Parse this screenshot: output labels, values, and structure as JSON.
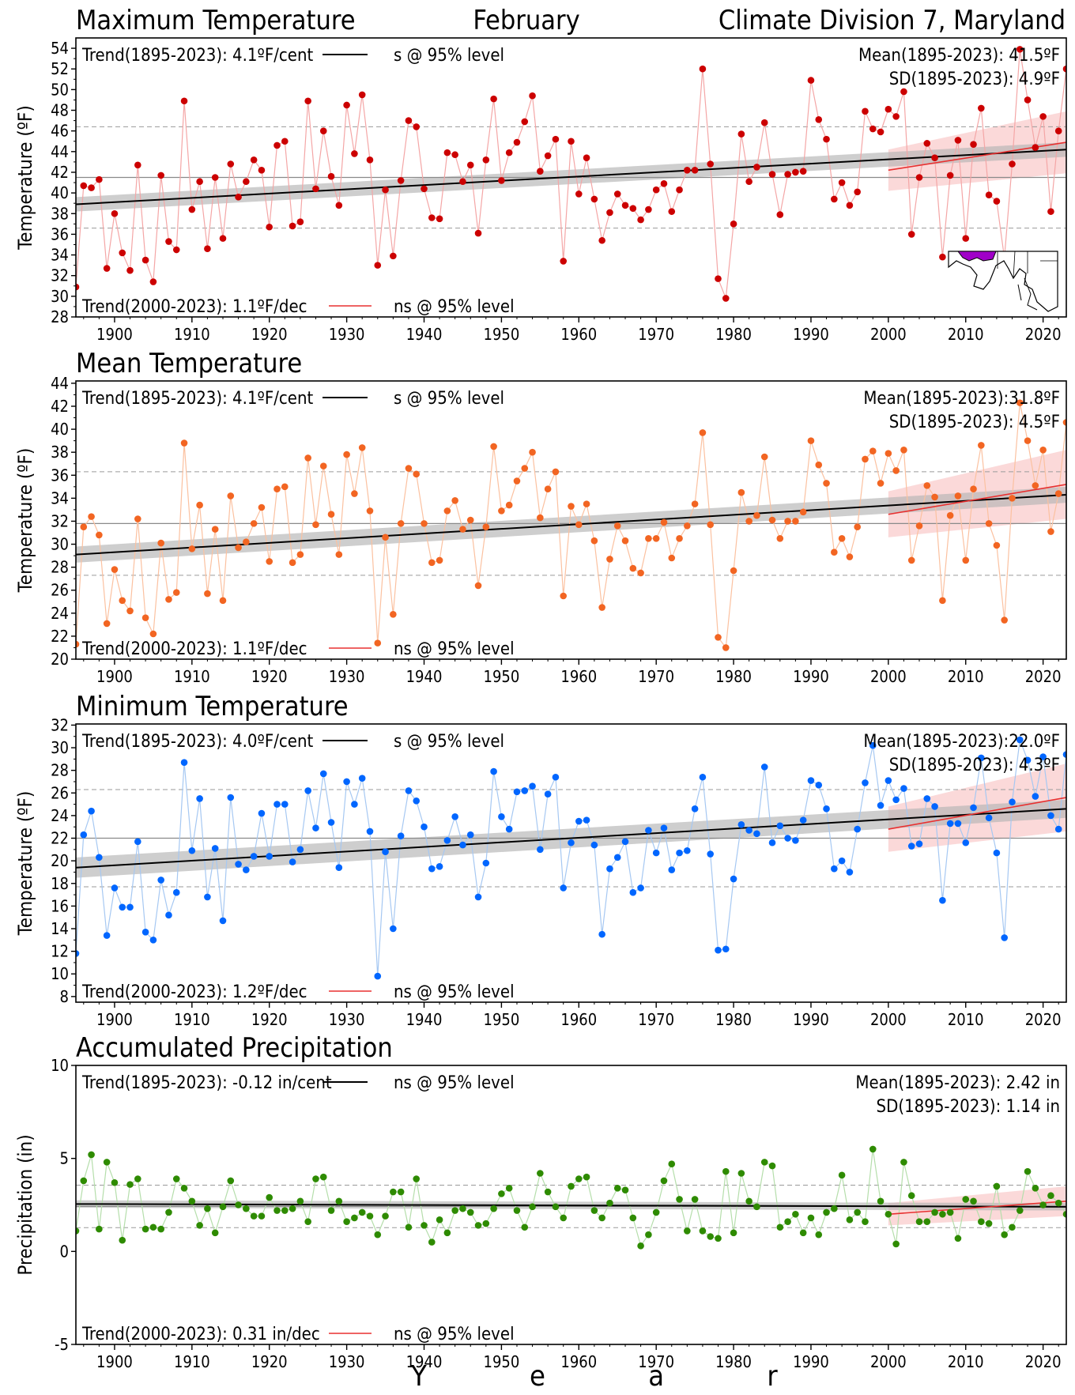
{
  "header": {
    "left_title": "Maximum Temperature",
    "center_title": "February",
    "right_title": "Climate Division 7, Maryland"
  },
  "xlabel": "Y e a r",
  "chart_data": [
    {
      "type": "line",
      "title": "Maximum Temperature",
      "ylabel": "Temperature (ºF)",
      "color": "#cc0000",
      "line_color": "#f4a6a6",
      "xlim": [
        1895,
        2023
      ],
      "ylim": [
        28,
        55
      ],
      "yticks": [
        28,
        30,
        32,
        34,
        36,
        38,
        40,
        42,
        44,
        46,
        48,
        50,
        52,
        54
      ],
      "xticks": [
        1900,
        1910,
        1920,
        1930,
        1940,
        1950,
        1960,
        1970,
        1980,
        1990,
        2000,
        2010,
        2020
      ],
      "mean": 41.5,
      "sd": 4.9,
      "mean_text": "Mean(1895-2023): 41.5ºF",
      "sd_text": "SD(1895-2023): 4.9ºF",
      "trend_long_text": "Trend(1895-2023):  4.1ºF/cent",
      "trend_long_sig": "s @ 95% level",
      "trend_short_text": "Trend(2000-2023):  1.1ºF/dec",
      "trend_short_sig": "ns @ 95% level",
      "trend_long": {
        "start": 38.9,
        "end": 44.2,
        "band_start": 0.7,
        "band_end": 0.7
      },
      "trend_short": {
        "start": 42.2,
        "end": 44.9,
        "band_start": 2.0,
        "band_end": 3.0
      },
      "x": [
        1895,
        1896,
        1897,
        1898,
        1899,
        1900,
        1901,
        1902,
        1903,
        1904,
        1905,
        1906,
        1907,
        1908,
        1909,
        1910,
        1911,
        1912,
        1913,
        1914,
        1915,
        1916,
        1917,
        1918,
        1919,
        1920,
        1921,
        1922,
        1923,
        1924,
        1925,
        1926,
        1927,
        1928,
        1929,
        1930,
        1931,
        1932,
        1933,
        1934,
        1935,
        1936,
        1937,
        1938,
        1939,
        1940,
        1941,
        1942,
        1943,
        1944,
        1945,
        1946,
        1947,
        1948,
        1949,
        1950,
        1951,
        1952,
        1953,
        1954,
        1955,
        1956,
        1957,
        1958,
        1959,
        1960,
        1961,
        1962,
        1963,
        1964,
        1965,
        1966,
        1967,
        1968,
        1969,
        1970,
        1971,
        1972,
        1973,
        1974,
        1975,
        1976,
        1977,
        1978,
        1979,
        1980,
        1981,
        1982,
        1983,
        1984,
        1985,
        1986,
        1987,
        1988,
        1989,
        1990,
        1991,
        1992,
        1993,
        1994,
        1995,
        1996,
        1997,
        1998,
        1999,
        2000,
        2001,
        2002,
        2003,
        2004,
        2005,
        2006,
        2007,
        2008,
        2009,
        2010,
        2011,
        2012,
        2013,
        2014,
        2015,
        2016,
        2017,
        2018,
        2019,
        2020,
        2021,
        2022,
        2023
      ],
      "values": [
        30.9,
        40.7,
        40.5,
        41.3,
        32.7,
        38.0,
        34.2,
        32.5,
        42.7,
        33.5,
        31.4,
        41.7,
        35.3,
        34.5,
        48.9,
        38.4,
        41.1,
        34.6,
        41.5,
        35.6,
        42.8,
        39.6,
        41.1,
        43.2,
        42.2,
        36.7,
        44.6,
        45.0,
        36.8,
        37.2,
        48.9,
        40.4,
        46.0,
        41.6,
        38.8,
        48.5,
        43.8,
        49.5,
        43.2,
        33.0,
        40.3,
        33.9,
        41.2,
        47.0,
        46.4,
        40.4,
        37.6,
        37.5,
        43.9,
        43.7,
        41.1,
        42.7,
        36.1,
        43.2,
        49.1,
        41.2,
        43.9,
        44.9,
        46.9,
        49.4,
        42.1,
        43.6,
        45.2,
        33.4,
        45.0,
        39.9,
        43.4,
        39.4,
        35.4,
        38.1,
        39.9,
        38.8,
        38.5,
        37.4,
        38.4,
        40.3,
        40.9,
        38.2,
        40.3,
        42.2,
        42.2,
        52.0,
        42.8,
        31.7,
        29.8,
        37.0,
        45.7,
        41.1,
        42.5,
        46.8,
        41.8,
        37.9,
        41.8,
        42.0,
        42.1,
        50.9,
        47.1,
        45.2,
        39.4,
        41.0,
        38.8,
        40.1,
        47.9,
        46.2,
        45.9,
        48.1,
        47.4,
        49.8,
        36.0,
        41.5,
        44.8,
        43.4,
        33.8,
        41.7,
        45.1,
        35.6,
        44.7,
        48.2,
        39.8,
        39.2,
        33.7,
        42.8,
        53.9,
        49.0,
        44.4,
        47.4,
        38.2,
        46.0,
        52.0
      ]
    },
    {
      "type": "line",
      "title": "Mean Temperature",
      "ylabel": "Temperature (ºF)",
      "color": "#f26522",
      "line_color": "#fbc1a0",
      "xlim": [
        1895,
        2023
      ],
      "ylim": [
        20,
        44.2
      ],
      "yticks": [
        20,
        22,
        24,
        26,
        28,
        30,
        32,
        34,
        36,
        38,
        40,
        42,
        44
      ],
      "xticks": [
        1900,
        1910,
        1920,
        1930,
        1940,
        1950,
        1960,
        1970,
        1980,
        1990,
        2000,
        2010,
        2020
      ],
      "mean": 31.8,
      "sd": 4.5,
      "mean_text": "Mean(1895-2023):31.8ºF",
      "sd_text": "SD(1895-2023): 4.5ºF",
      "trend_long_text": "Trend(1895-2023):  4.1ºF/cent",
      "trend_long_sig": "s @ 95% level",
      "trend_short_text": "Trend(2000-2023):  1.1ºF/dec",
      "trend_short_sig": "ns @ 95% level",
      "trend_long": {
        "start": 29.1,
        "end": 34.3,
        "band_start": 0.7,
        "band_end": 0.7
      },
      "trend_short": {
        "start": 32.6,
        "end": 35.2,
        "band_start": 2.0,
        "band_end": 3.0
      },
      "x": [
        1895,
        1896,
        1897,
        1898,
        1899,
        1900,
        1901,
        1902,
        1903,
        1904,
        1905,
        1906,
        1907,
        1908,
        1909,
        1910,
        1911,
        1912,
        1913,
        1914,
        1915,
        1916,
        1917,
        1918,
        1919,
        1920,
        1921,
        1922,
        1923,
        1924,
        1925,
        1926,
        1927,
        1928,
        1929,
        1930,
        1931,
        1932,
        1933,
        1934,
        1935,
        1936,
        1937,
        1938,
        1939,
        1940,
        1941,
        1942,
        1943,
        1944,
        1945,
        1946,
        1947,
        1948,
        1949,
        1950,
        1951,
        1952,
        1953,
        1954,
        1955,
        1956,
        1957,
        1958,
        1959,
        1960,
        1961,
        1962,
        1963,
        1964,
        1965,
        1966,
        1967,
        1968,
        1969,
        1970,
        1971,
        1972,
        1973,
        1974,
        1975,
        1976,
        1977,
        1978,
        1979,
        1980,
        1981,
        1982,
        1983,
        1984,
        1985,
        1986,
        1987,
        1988,
        1989,
        1990,
        1991,
        1992,
        1993,
        1994,
        1995,
        1996,
        1997,
        1998,
        1999,
        2000,
        2001,
        2002,
        2003,
        2004,
        2005,
        2006,
        2007,
        2008,
        2009,
        2010,
        2011,
        2012,
        2013,
        2014,
        2015,
        2016,
        2017,
        2018,
        2019,
        2020,
        2021,
        2022,
        2023
      ],
      "values": [
        21.3,
        31.5,
        32.4,
        30.8,
        23.1,
        27.8,
        25.1,
        24.2,
        32.2,
        23.6,
        22.2,
        30.1,
        25.2,
        25.8,
        38.8,
        29.6,
        33.4,
        25.7,
        31.3,
        25.1,
        34.2,
        29.7,
        30.2,
        31.8,
        33.2,
        28.5,
        34.8,
        35.0,
        28.4,
        29.1,
        37.5,
        31.7,
        36.8,
        32.6,
        29.1,
        37.8,
        34.4,
        38.4,
        32.9,
        21.4,
        30.6,
        23.9,
        31.8,
        36.6,
        36.1,
        31.8,
        28.4,
        28.6,
        32.9,
        33.8,
        31.3,
        32.1,
        26.4,
        31.5,
        38.5,
        32.9,
        33.4,
        35.5,
        36.6,
        38.0,
        32.3,
        34.8,
        36.3,
        25.5,
        33.3,
        31.7,
        33.5,
        30.3,
        24.5,
        28.7,
        31.6,
        30.3,
        27.9,
        27.5,
        30.5,
        30.5,
        31.9,
        28.8,
        30.5,
        31.6,
        33.5,
        39.7,
        31.7,
        21.9,
        21.0,
        27.7,
        34.5,
        32.0,
        32.5,
        37.6,
        32.1,
        30.5,
        32.0,
        32.0,
        32.8,
        39.0,
        36.9,
        35.3,
        29.3,
        30.5,
        28.9,
        31.5,
        37.4,
        38.1,
        35.3,
        37.9,
        36.4,
        38.2,
        28.6,
        31.6,
        35.1,
        34.1,
        25.1,
        32.5,
        34.2,
        28.6,
        34.8,
        38.6,
        31.8,
        29.9,
        23.4,
        34.0,
        42.3,
        39.0,
        35.1,
        38.2,
        31.1,
        34.4,
        40.6
      ]
    },
    {
      "type": "line",
      "title": "Minimum Temperature",
      "ylabel": "Temperature (ºF)",
      "color": "#0066ff",
      "line_color": "#a6c8f2",
      "xlim": [
        1895,
        2023
      ],
      "ylim": [
        7.5,
        32.1
      ],
      "yticks": [
        8,
        10,
        12,
        14,
        16,
        18,
        20,
        22,
        24,
        26,
        28,
        30,
        32
      ],
      "xticks": [
        1900,
        1910,
        1920,
        1930,
        1940,
        1950,
        1960,
        1970,
        1980,
        1990,
        2000,
        2010,
        2020
      ],
      "mean": 22.0,
      "sd": 4.3,
      "mean_text": "Mean(1895-2023):22.0ºF",
      "sd_text": "SD(1895-2023): 4.3ºF",
      "trend_long_text": "Trend(1895-2023):  4.0ºF/cent",
      "trend_long_sig": "s @ 95% level",
      "trend_short_text": "Trend(2000-2023):  1.2ºF/dec",
      "trend_short_sig": "ns @ 95% level",
      "trend_long": {
        "start": 19.4,
        "end": 24.6,
        "band_start": 0.9,
        "band_end": 0.8
      },
      "trend_short": {
        "start": 22.8,
        "end": 25.6,
        "band_start": 2.0,
        "band_end": 3.0
      },
      "x": [
        1895,
        1896,
        1897,
        1898,
        1899,
        1900,
        1901,
        1902,
        1903,
        1904,
        1905,
        1906,
        1907,
        1908,
        1909,
        1910,
        1911,
        1912,
        1913,
        1914,
        1915,
        1916,
        1917,
        1918,
        1919,
        1920,
        1921,
        1922,
        1923,
        1924,
        1925,
        1926,
        1927,
        1928,
        1929,
        1930,
        1931,
        1932,
        1933,
        1934,
        1935,
        1936,
        1937,
        1938,
        1939,
        1940,
        1941,
        1942,
        1943,
        1944,
        1945,
        1946,
        1947,
        1948,
        1949,
        1950,
        1951,
        1952,
        1953,
        1954,
        1955,
        1956,
        1957,
        1958,
        1959,
        1960,
        1961,
        1962,
        1963,
        1964,
        1965,
        1966,
        1967,
        1968,
        1969,
        1970,
        1971,
        1972,
        1973,
        1974,
        1975,
        1976,
        1977,
        1978,
        1979,
        1980,
        1981,
        1982,
        1983,
        1984,
        1985,
        1986,
        1987,
        1988,
        1989,
        1990,
        1991,
        1992,
        1993,
        1994,
        1995,
        1996,
        1997,
        1998,
        1999,
        2000,
        2001,
        2002,
        2003,
        2004,
        2005,
        2006,
        2007,
        2008,
        2009,
        2010,
        2011,
        2012,
        2013,
        2014,
        2015,
        2016,
        2017,
        2018,
        2019,
        2020,
        2021,
        2022,
        2023
      ],
      "values": [
        11.8,
        22.3,
        24.4,
        20.3,
        13.4,
        17.6,
        15.9,
        15.9,
        21.7,
        13.7,
        13.0,
        18.3,
        15.2,
        17.2,
        28.7,
        20.9,
        25.5,
        16.8,
        21.1,
        14.7,
        25.6,
        19.7,
        19.2,
        20.4,
        24.2,
        20.4,
        25.0,
        25.0,
        19.9,
        21.0,
        26.2,
        22.9,
        27.7,
        23.4,
        19.4,
        27.0,
        25.0,
        27.3,
        22.6,
        9.8,
        20.8,
        14.0,
        22.2,
        26.2,
        25.3,
        23.0,
        19.3,
        19.5,
        21.8,
        23.9,
        21.4,
        22.3,
        16.8,
        19.8,
        27.9,
        23.9,
        22.8,
        26.1,
        26.2,
        26.6,
        21.0,
        25.9,
        27.4,
        17.6,
        21.6,
        23.5,
        23.6,
        21.4,
        13.5,
        19.3,
        20.3,
        21.7,
        17.2,
        17.6,
        22.7,
        20.7,
        22.9,
        19.2,
        20.7,
        20.9,
        24.6,
        27.4,
        20.6,
        12.1,
        12.2,
        18.4,
        23.2,
        22.7,
        22.4,
        28.3,
        21.6,
        23.1,
        22.0,
        21.8,
        23.6,
        27.1,
        26.7,
        24.6,
        19.3,
        20.0,
        19.0,
        22.8,
        26.9,
        30.2,
        24.9,
        27.1,
        25.4,
        26.4,
        21.3,
        21.5,
        25.5,
        24.8,
        16.5,
        23.3,
        23.3,
        21.6,
        24.7,
        29.1,
        23.8,
        20.7,
        13.2,
        25.2,
        30.7,
        28.9,
        25.7,
        29.2,
        24.0,
        22.8,
        29.4
      ]
    },
    {
      "type": "line",
      "title": "Accumulated Precipitation",
      "ylabel": "Precipitation (in)",
      "color": "#2e8b00",
      "line_color": "#b5deab",
      "xlim": [
        1895,
        2023
      ],
      "ylim": [
        -5,
        10
      ],
      "yticks": [
        -5,
        0,
        5,
        10
      ],
      "xticks": [
        1900,
        1910,
        1920,
        1930,
        1940,
        1950,
        1960,
        1970,
        1980,
        1990,
        2000,
        2010,
        2020
      ],
      "mean": 2.42,
      "sd": 1.14,
      "mean_text": "Mean(1895-2023): 2.42 in",
      "sd_text": "SD(1895-2023): 1.14 in",
      "trend_long_text": "Trend(1895-2023): -0.12 in/cent",
      "trend_long_sig": "ns @ 95% level",
      "trend_short_text": "Trend(2000-2023):  0.31 in/dec",
      "trend_short_sig": "ns @ 95% level",
      "trend_long": {
        "start": 2.55,
        "end": 2.4,
        "band_start": 0.2,
        "band_end": 0.2
      },
      "trend_short": {
        "start": 2.0,
        "end": 2.7,
        "band_start": 0.6,
        "band_end": 0.8
      },
      "x": [
        1895,
        1896,
        1897,
        1898,
        1899,
        1900,
        1901,
        1902,
        1903,
        1904,
        1905,
        1906,
        1907,
        1908,
        1909,
        1910,
        1911,
        1912,
        1913,
        1914,
        1915,
        1916,
        1917,
        1918,
        1919,
        1920,
        1921,
        1922,
        1923,
        1924,
        1925,
        1926,
        1927,
        1928,
        1929,
        1930,
        1931,
        1932,
        1933,
        1934,
        1935,
        1936,
        1937,
        1938,
        1939,
        1940,
        1941,
        1942,
        1943,
        1944,
        1945,
        1946,
        1947,
        1948,
        1949,
        1950,
        1951,
        1952,
        1953,
        1954,
        1955,
        1956,
        1957,
        1958,
        1959,
        1960,
        1961,
        1962,
        1963,
        1964,
        1965,
        1966,
        1967,
        1968,
        1969,
        1970,
        1971,
        1972,
        1973,
        1974,
        1975,
        1976,
        1977,
        1978,
        1979,
        1980,
        1981,
        1982,
        1983,
        1984,
        1985,
        1986,
        1987,
        1988,
        1989,
        1990,
        1991,
        1992,
        1993,
        1994,
        1995,
        1996,
        1997,
        1998,
        1999,
        2000,
        2001,
        2002,
        2003,
        2004,
        2005,
        2006,
        2007,
        2008,
        2009,
        2010,
        2011,
        2012,
        2013,
        2014,
        2015,
        2016,
        2017,
        2018,
        2019,
        2020,
        2021,
        2022,
        2023
      ],
      "values": [
        1.1,
        3.8,
        5.2,
        1.2,
        4.8,
        3.7,
        0.6,
        3.6,
        3.9,
        1.2,
        1.3,
        1.2,
        2.1,
        3.9,
        3.4,
        2.7,
        1.4,
        2.3,
        1.0,
        2.4,
        3.8,
        2.5,
        2.3,
        1.9,
        1.9,
        2.9,
        2.2,
        2.2,
        2.3,
        2.7,
        1.6,
        3.9,
        4.0,
        2.2,
        2.7,
        1.6,
        1.8,
        2.1,
        1.9,
        0.9,
        1.9,
        3.2,
        3.2,
        1.3,
        3.9,
        1.4,
        0.5,
        1.7,
        1.0,
        2.2,
        2.3,
        2.1,
        1.4,
        1.5,
        2.3,
        3.1,
        3.4,
        2.2,
        1.3,
        2.4,
        4.2,
        3.2,
        2.4,
        1.8,
        3.5,
        3.9,
        4.0,
        2.2,
        1.8,
        2.6,
        3.4,
        3.3,
        1.8,
        0.3,
        0.9,
        2.1,
        3.8,
        4.7,
        2.8,
        1.1,
        2.8,
        1.1,
        0.8,
        0.7,
        4.3,
        1.0,
        4.2,
        2.7,
        2.4,
        4.8,
        4.6,
        1.3,
        1.6,
        2.0,
        1.0,
        1.8,
        0.9,
        2.1,
        2.3,
        4.1,
        1.7,
        2.1,
        1.6,
        5.5,
        2.7,
        2.0,
        0.4,
        4.8,
        3.0,
        1.6,
        1.6,
        2.1,
        2.0,
        2.1,
        0.7,
        2.8,
        2.7,
        1.6,
        1.5,
        3.5,
        0.9,
        1.3,
        2.2,
        4.3,
        3.4,
        2.5,
        3.0,
        2.6,
        2.0
      ]
    }
  ],
  "inset_map": {
    "icon": "maryland-map-icon",
    "highlight_color": "#a000c8"
  }
}
